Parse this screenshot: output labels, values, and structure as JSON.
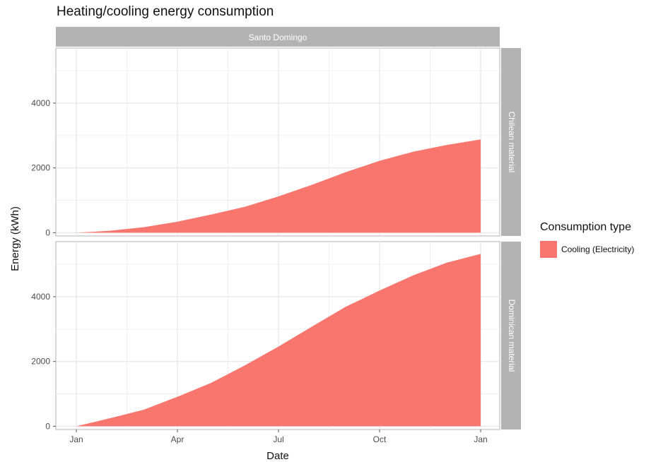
{
  "chart_data": {
    "type": "area",
    "title": "Heating/cooling energy consumption",
    "xlabel": "Date",
    "ylabel": "Energy (kWh)",
    "facet_column": "Santo Domingo",
    "facet_rows": [
      "Chilean material",
      "Dominican material"
    ],
    "x_ticks": [
      "Jan",
      "Apr",
      "Jul",
      "Oct",
      "Jan"
    ],
    "y_ticks": [
      0,
      2000,
      4000
    ],
    "ylim": [
      -100,
      5700
    ],
    "grid": true,
    "legend": {
      "title": "Consumption type",
      "position": "right",
      "entries": [
        {
          "label": "Cooling (Electricity)",
          "color": "#F8766D"
        }
      ]
    },
    "x_months": [
      0,
      1,
      2,
      3,
      4,
      5,
      6,
      7,
      8,
      9,
      10,
      11,
      12
    ],
    "series": [
      {
        "name": "Cooling (Electricity)",
        "panel": "Chilean material",
        "values": [
          0,
          60,
          170,
          340,
          560,
          800,
          1120,
          1480,
          1870,
          2220,
          2500,
          2710,
          2880
        ]
      },
      {
        "name": "Cooling (Electricity)",
        "panel": "Dominican material",
        "values": [
          0,
          250,
          510,
          910,
          1340,
          1880,
          2460,
          3080,
          3690,
          4190,
          4660,
          5050,
          5320
        ]
      }
    ]
  }
}
